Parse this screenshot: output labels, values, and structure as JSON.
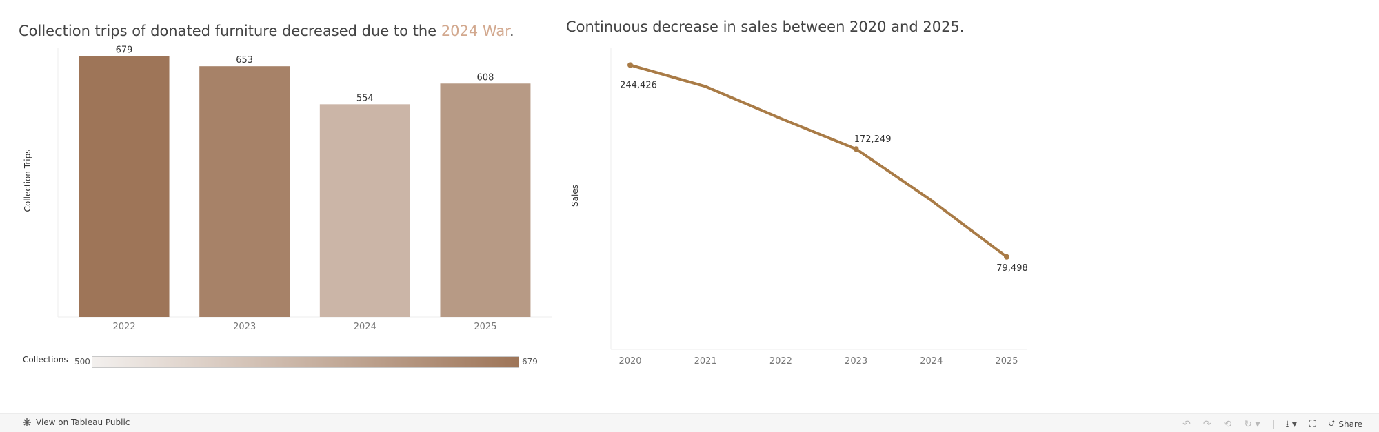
{
  "colors": {
    "bar_min": "#f3f0ee",
    "bar_max": "#9e7558",
    "line": "#a97b46",
    "highlight": "#d2a88e"
  },
  "chart_data": [
    {
      "type": "bar",
      "title_before": "Collection trips of donated furniture decreased due to the ",
      "title_highlight": "2024 War",
      "title_after": ".",
      "categories": [
        "2022",
        "2023",
        "2024",
        "2025"
      ],
      "values": [
        679,
        653,
        554,
        608
      ],
      "value_labels": [
        "679",
        "653",
        "554",
        "608"
      ],
      "ylabel": "Collection Trips",
      "ylim": [
        0,
        700
      ],
      "legend": {
        "title": "Collections",
        "min": 500,
        "max": 679,
        "min_label": "500",
        "max_label": "679"
      }
    },
    {
      "type": "line",
      "title": "Continuous decrease in sales between 2020 and 2025.",
      "x": [
        "2020",
        "2021",
        "2022",
        "2023",
        "2024",
        "2025"
      ],
      "values": [
        244426,
        226000,
        198500,
        172249,
        128000,
        79498
      ],
      "point_labels": [
        {
          "index": 0,
          "label": "244,426"
        },
        {
          "index": 3,
          "label": "172,249"
        },
        {
          "index": 5,
          "label": "79,498"
        }
      ],
      "ylabel": "Sales",
      "ylim": [
        0,
        250000
      ]
    }
  ],
  "footer": {
    "tableau_label": "View on Tableau Public",
    "share_label": "Share"
  }
}
